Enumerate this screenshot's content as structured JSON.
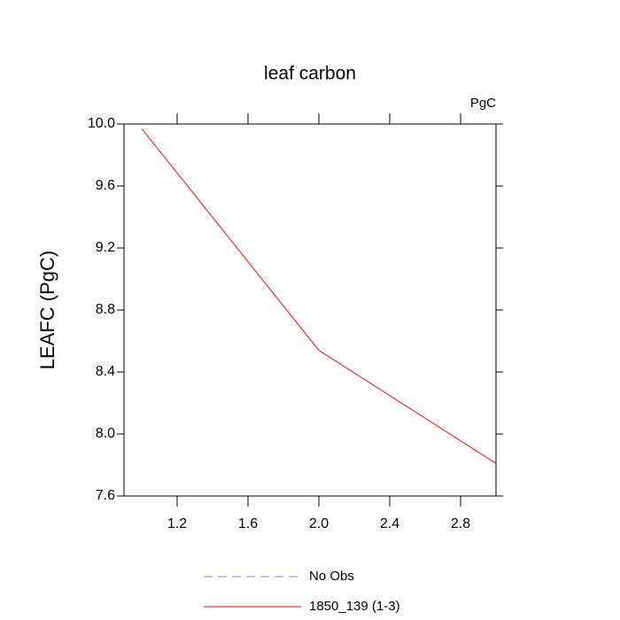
{
  "chart_data": {
    "type": "line",
    "title": "leaf carbon",
    "units_label": "PgC",
    "y_label": "LEAFC  (PgC)",
    "x": [
      1,
      2,
      3
    ],
    "series": [
      {
        "name": "No Obs",
        "color": "#8080ff",
        "dashed": true,
        "values": [
          null,
          null,
          null
        ]
      },
      {
        "name": "1850_139 (1-3)",
        "color": "#ff0000",
        "dashed": false,
        "values": [
          9.97,
          8.54,
          7.81
        ]
      }
    ],
    "xlim": [
      0.9,
      3.0
    ],
    "xticks": [
      1.2,
      1.6,
      {
        "value": 2,
        "label": "2.0"
      },
      2.4,
      2.8
    ],
    "ylim": [
      7.6,
      10.0
    ],
    "yticks": [
      7.6,
      {
        "value": 8,
        "label": "8.0"
      },
      8.4,
      8.8,
      9.2,
      9.6,
      {
        "value": 10,
        "label": "10.0"
      }
    ],
    "grid": false
  }
}
